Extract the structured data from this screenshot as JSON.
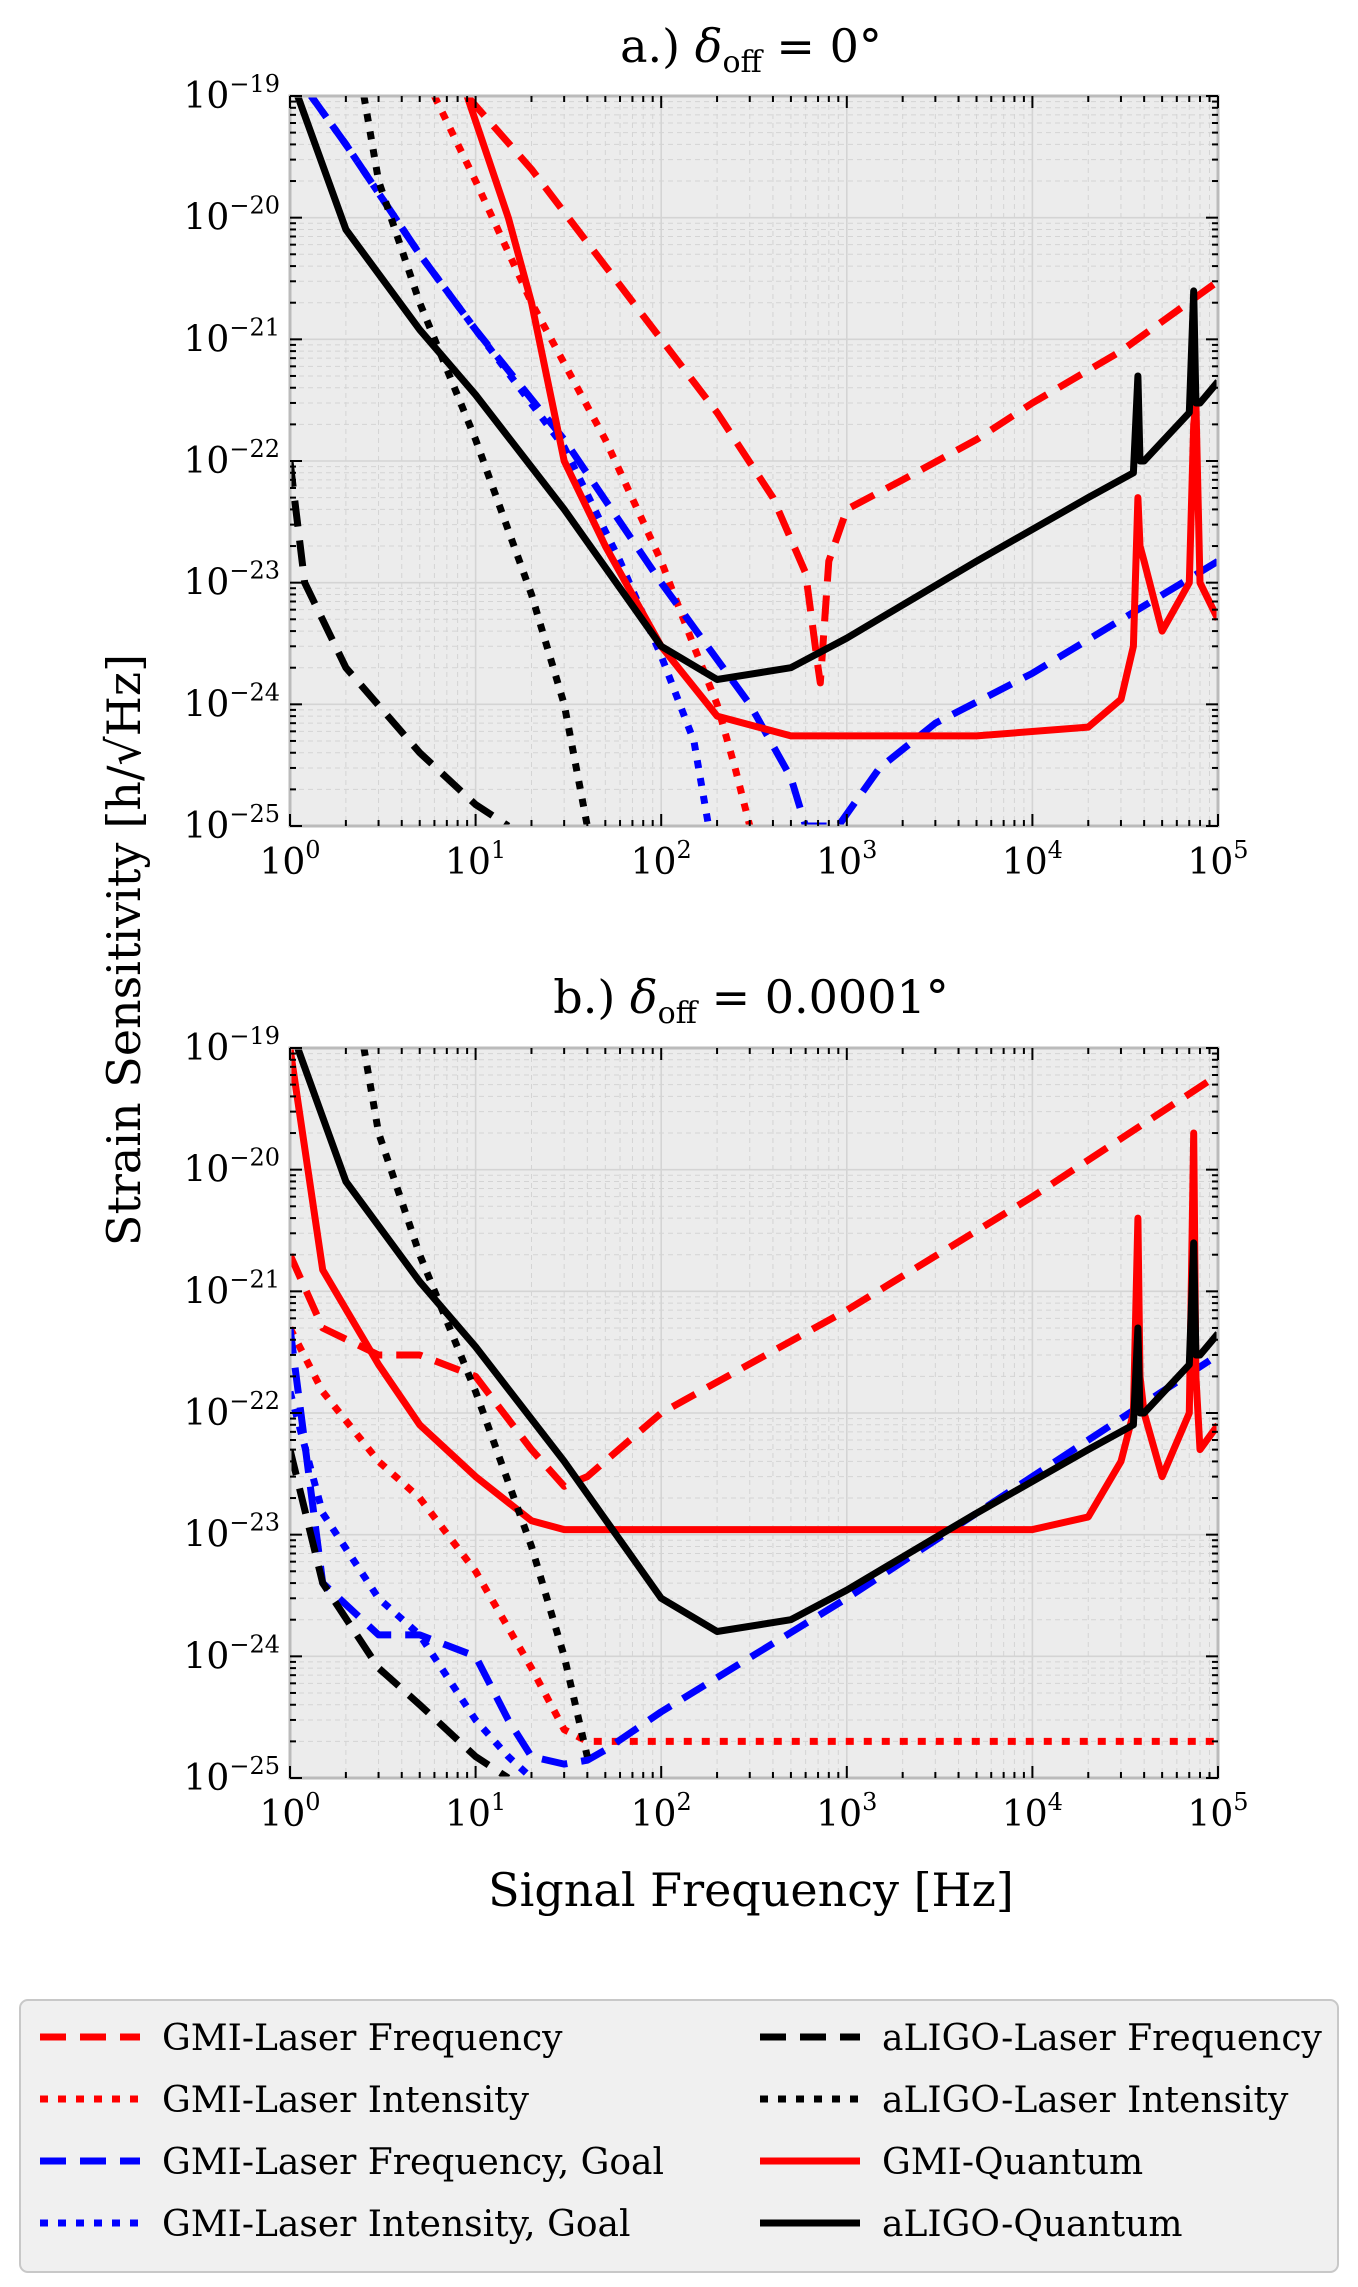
{
  "figure": {
    "ylabel": "Strain Sensitivity",
    "ylabel_unit": "h/√Hz",
    "xlabel": "Signal Frequency [Hz]",
    "tick_base": "10",
    "x_ticks": [
      {
        "exp": "0"
      },
      {
        "exp": "1"
      },
      {
        "exp": "2"
      },
      {
        "exp": "3"
      },
      {
        "exp": "4"
      },
      {
        "exp": "5"
      }
    ],
    "y_ticks": [
      {
        "exp": "−19"
      },
      {
        "exp": "−20"
      },
      {
        "exp": "−21"
      },
      {
        "exp": "−22"
      },
      {
        "exp": "−23"
      },
      {
        "exp": "−24"
      },
      {
        "exp": "−25"
      }
    ]
  },
  "colors": {
    "gmi_red": "#ff0000",
    "goal_blue": "#0000ff",
    "aligo_black": "#000000",
    "plot_bg": "#ececec",
    "legend_bg": "#f0f0f0"
  },
  "legend": [
    {
      "label": "GMI-Laser Frequency",
      "color": "#ff0000",
      "style": "dashed"
    },
    {
      "label": "aLIGO-Laser Frequency",
      "color": "#000000",
      "style": "dashed"
    },
    {
      "label": "GMI-Laser Intensity",
      "color": "#ff0000",
      "style": "dotted"
    },
    {
      "label": "aLIGO-Laser Intensity",
      "color": "#000000",
      "style": "dotted"
    },
    {
      "label": "GMI-Laser Frequency, Goal",
      "color": "#0000ff",
      "style": "dashed"
    },
    {
      "label": "GMI-Quantum",
      "color": "#ff0000",
      "style": "solid"
    },
    {
      "label": "GMI-Laser Intensity, Goal",
      "color": "#0000ff",
      "style": "dotted"
    },
    {
      "label": "aLIGO-Quantum",
      "color": "#000000",
      "style": "solid"
    }
  ],
  "chart_data": [
    {
      "type": "line",
      "panel": "a",
      "title_prefix": "a.) ",
      "title_symbol": "δ",
      "title_sub": "off",
      "title_eq": " = 0°",
      "xlabel": "Signal Frequency [Hz]",
      "ylabel": "Strain Sensitivity [h/√Hz]",
      "xscale": "log",
      "yscale": "log",
      "xlim": [
        1,
        100000
      ],
      "ylim": [
        1e-25,
        1e-19
      ],
      "series": [
        {
          "name": "GMI-Laser Frequency",
          "color": "#ff0000",
          "style": "dashed",
          "x": [
            9,
            20,
            50,
            100,
            200,
            400,
            600,
            700,
            720,
            800,
            1000,
            2000,
            5000,
            10000,
            30000,
            100000
          ],
          "y": [
            1e-19,
            2.5e-20,
            4e-21,
            1e-21,
            2.5e-22,
            5e-23,
            1.2e-23,
            2e-24,
            1.5e-24,
            1.5e-23,
            4e-23,
            7e-23,
            1.5e-22,
            3e-22,
            8e-22,
            3e-21
          ]
        },
        {
          "name": "GMI-Laser Intensity",
          "color": "#ff0000",
          "style": "dotted",
          "x": [
            6,
            10,
            20,
            50,
            100,
            150,
            200,
            250,
            300
          ],
          "y": [
            1e-19,
            2e-20,
            2e-21,
            1.5e-22,
            1.5e-23,
            3e-24,
            1e-24,
            3e-25,
            1e-25
          ]
        },
        {
          "name": "GMI-Laser Frequency, Goal",
          "color": "#0000ff",
          "style": "dashed",
          "x": [
            1.3,
            2,
            5,
            10,
            30,
            100,
            300,
            500,
            600,
            900,
            1500,
            3000,
            10000,
            100000
          ],
          "y": [
            1e-19,
            4e-20,
            5e-21,
            1.2e-21,
            1.5e-22,
            1e-23,
            1e-24,
            2.5e-25,
            1e-25,
            1e-25,
            3e-25,
            7e-25,
            1.8e-24,
            1.5e-23
          ]
        },
        {
          "name": "GMI-Laser Intensity, Goal",
          "color": "#0000ff",
          "style": "dotted",
          "x": [
            1.3,
            2,
            5,
            10,
            30,
            60,
            100,
            150,
            180
          ],
          "y": [
            1e-19,
            4e-20,
            5e-21,
            1.2e-21,
            1.3e-22,
            1.5e-23,
            2.5e-24,
            5e-25,
            1e-25
          ]
        },
        {
          "name": "GMI-Quantum",
          "color": "#ff0000",
          "style": "solid",
          "x": [
            9,
            15,
            20,
            30,
            50,
            100,
            200,
            500,
            1000,
            5000,
            20000,
            30000,
            35000,
            37000,
            38000,
            40000,
            50000,
            70000,
            74000,
            76000,
            80000,
            100000
          ],
          "y": [
            1e-19,
            1e-20,
            2e-21,
            1e-22,
            2e-23,
            3e-24,
            8e-25,
            5.5e-25,
            5.5e-25,
            5.5e-25,
            6.5e-25,
            1.1e-24,
            3e-24,
            5e-23,
            2e-23,
            1.5e-23,
            4e-24,
            1e-23,
            2e-22,
            3e-22,
            1e-23,
            5e-24
          ]
        },
        {
          "name": "aLIGO-Laser Frequency",
          "color": "#000000",
          "style": "dashed",
          "x": [
            1,
            1.2,
            2,
            5,
            10,
            15
          ],
          "y": [
            1e-22,
            1e-23,
            2e-24,
            4e-25,
            1.5e-25,
            1e-25
          ]
        },
        {
          "name": "aLIGO-Laser Intensity",
          "color": "#000000",
          "style": "dotted",
          "x": [
            2.5,
            3,
            5,
            10,
            20,
            30,
            40
          ],
          "y": [
            1e-19,
            2e-20,
            2e-21,
            1.5e-22,
            8e-24,
            1e-24,
            1e-25
          ]
        },
        {
          "name": "aLIGO-Quantum",
          "color": "#000000",
          "style": "solid",
          "x": [
            1.1,
            2,
            5,
            10,
            30,
            100,
            200,
            500,
            1000,
            5000,
            20000,
            35000,
            37000,
            38000,
            40000,
            70000,
            74000,
            76000,
            80000,
            100000
          ],
          "y": [
            1e-19,
            8e-21,
            1.2e-21,
            3.5e-22,
            4e-23,
            3e-24,
            1.6e-24,
            2e-24,
            3.5e-24,
            1.5e-23,
            5e-23,
            8e-23,
            5e-22,
            1e-22,
            1e-22,
            2.5e-22,
            2.5e-21,
            3e-22,
            3e-22,
            4.5e-22
          ]
        }
      ]
    },
    {
      "type": "line",
      "panel": "b",
      "title_prefix": "b.) ",
      "title_symbol": "δ",
      "title_sub": "off",
      "title_eq": " = 0.0001°",
      "xlabel": "Signal Frequency [Hz]",
      "ylabel": "Strain Sensitivity [h/√Hz]",
      "xscale": "log",
      "yscale": "log",
      "xlim": [
        1,
        100000
      ],
      "ylim": [
        1e-25,
        1e-19
      ],
      "series": [
        {
          "name": "GMI-Laser Frequency",
          "color": "#ff0000",
          "style": "dashed",
          "x": [
            1,
            1.5,
            3,
            5,
            10,
            20,
            30,
            40,
            100,
            1000,
            10000,
            100000
          ],
          "y": [
            2e-21,
            5e-22,
            3e-22,
            3e-22,
            2e-22,
            5e-23,
            2.5e-23,
            3e-23,
            1e-22,
            7e-22,
            6e-21,
            6e-20
          ]
        },
        {
          "name": "GMI-Laser Intensity",
          "color": "#ff0000",
          "style": "dotted",
          "x": [
            1,
            1.5,
            3,
            5,
            10,
            20,
            30,
            40,
            100,
            1000,
            10000,
            100000
          ],
          "y": [
            5e-22,
            1.5e-22,
            4e-23,
            2e-23,
            5e-24,
            8e-25,
            2.5e-25,
            2e-25,
            2e-25,
            2e-25,
            2e-25,
            2e-25
          ]
        },
        {
          "name": "GMI-Laser Frequency, Goal",
          "color": "#0000ff",
          "style": "dashed",
          "x": [
            1,
            1.5,
            3,
            5,
            10,
            15,
            20,
            30,
            40,
            50,
            100,
            1000,
            10000,
            100000
          ],
          "y": [
            5e-22,
            4e-24,
            1.5e-24,
            1.5e-24,
            1e-24,
            3e-25,
            1.5e-25,
            1.3e-25,
            1.4e-25,
            1.7e-25,
            3.5e-25,
            3e-24,
            3e-23,
            3e-22
          ]
        },
        {
          "name": "GMI-Laser Intensity, Goal",
          "color": "#0000ff",
          "style": "dotted",
          "x": [
            1,
            1.5,
            3,
            5,
            10,
            15,
            20
          ],
          "y": [
            1.5e-22,
            1.5e-23,
            3e-24,
            1.5e-24,
            3e-25,
            1.5e-25,
            1e-25
          ]
        },
        {
          "name": "GMI-Quantum",
          "color": "#ff0000",
          "style": "solid",
          "x": [
            1,
            1.5,
            3,
            5,
            10,
            20,
            30,
            50,
            100,
            1000,
            10000,
            20000,
            30000,
            35000,
            37000,
            38000,
            40000,
            50000,
            70000,
            74000,
            76000,
            80000,
            100000
          ],
          "y": [
            1e-19,
            1.5e-21,
            2.5e-22,
            8e-23,
            3e-23,
            1.3e-23,
            1.1e-23,
            1.1e-23,
            1.1e-23,
            1.1e-23,
            1.1e-23,
            1.4e-23,
            4e-23,
            1e-22,
            4e-21,
            2e-22,
            1e-22,
            3e-23,
            1e-22,
            2e-20,
            2e-22,
            5e-23,
            8e-23
          ]
        },
        {
          "name": "aLIGO-Laser Frequency",
          "color": "#000000",
          "style": "dashed",
          "x": [
            1,
            1.5,
            3,
            5,
            10,
            15
          ],
          "y": [
            5e-23,
            4e-24,
            8e-25,
            4e-25,
            1.5e-25,
            1e-25
          ]
        },
        {
          "name": "aLIGO-Laser Intensity",
          "color": "#000000",
          "style": "dotted",
          "x": [
            2.5,
            3,
            5,
            10,
            20,
            30,
            40
          ],
          "y": [
            1e-19,
            2e-20,
            2e-21,
            1.5e-22,
            8e-24,
            1e-24,
            1.5e-25
          ]
        },
        {
          "name": "aLIGO-Quantum",
          "color": "#000000",
          "style": "solid",
          "x": [
            1.1,
            2,
            5,
            10,
            30,
            100,
            200,
            500,
            1000,
            5000,
            20000,
            35000,
            37000,
            38000,
            40000,
            70000,
            74000,
            76000,
            80000,
            100000
          ],
          "y": [
            1e-19,
            8e-21,
            1.2e-21,
            3.5e-22,
            4e-23,
            3e-24,
            1.6e-24,
            2e-24,
            3.5e-24,
            1.5e-23,
            5e-23,
            8e-23,
            5e-22,
            1e-22,
            1e-22,
            2.5e-22,
            2.5e-21,
            3e-22,
            3e-22,
            4.5e-22
          ]
        }
      ]
    }
  ]
}
